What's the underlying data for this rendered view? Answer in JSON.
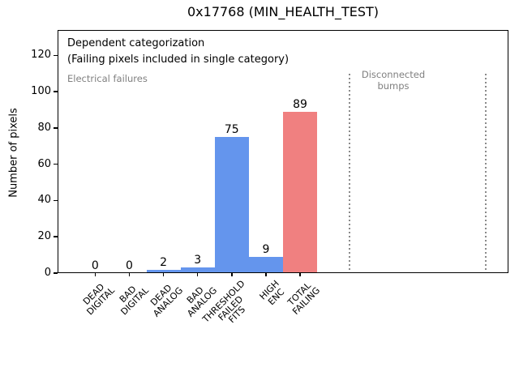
{
  "window": {
    "title": "0x17768 (MIN_HEALTH_TEST)"
  },
  "chart_data": {
    "type": "bar",
    "title": "0x17768 (MIN_HEALTH_TEST)",
    "xlabel": "",
    "ylabel": "Number of pixels",
    "categories": [
      "DEAD\nDIGITAL",
      "BAD\nDIGITAL",
      "DEAD\nANALOG",
      "BAD\nANALOG",
      "THRESHOLD\nFAILED\nFITS",
      "HIGH\nENC",
      "TOTAL\nFAILING"
    ],
    "values": [
      0,
      0,
      2,
      3,
      75,
      9,
      89
    ],
    "value_labels": [
      "0",
      "0",
      "2",
      "3",
      "75",
      "9",
      "89"
    ],
    "bar_colors": [
      "#6495ED",
      "#6495ED",
      "#6495ED",
      "#6495ED",
      "#6495ED",
      "#6495ED",
      "#F08080"
    ],
    "yticks": [
      0,
      20,
      40,
      60,
      80,
      100,
      120
    ],
    "ylim": [
      0,
      134
    ],
    "xlim": [
      -1.1,
      12.1
    ],
    "grid": false,
    "legend": "none",
    "annotations": {
      "dependent": {
        "text": "Dependent categorization\n(Failing pixels included in single category)",
        "color": "#000000"
      },
      "electrical": {
        "text": "Electrical failures",
        "color": "#808080"
      },
      "disconnected": {
        "text": "Disconnected\nbumps",
        "color": "#808080"
      }
    },
    "dividers": {
      "style": "dotted",
      "color": "#8a8a8a",
      "x": [
        7.45,
        11.43
      ],
      "y_top": 110
    }
  },
  "colors": {
    "bar_blue": "#6495ED",
    "bar_red": "#F08080",
    "annotation_gray": "#808080",
    "axis_black": "#000000",
    "background": "#ffffff"
  }
}
